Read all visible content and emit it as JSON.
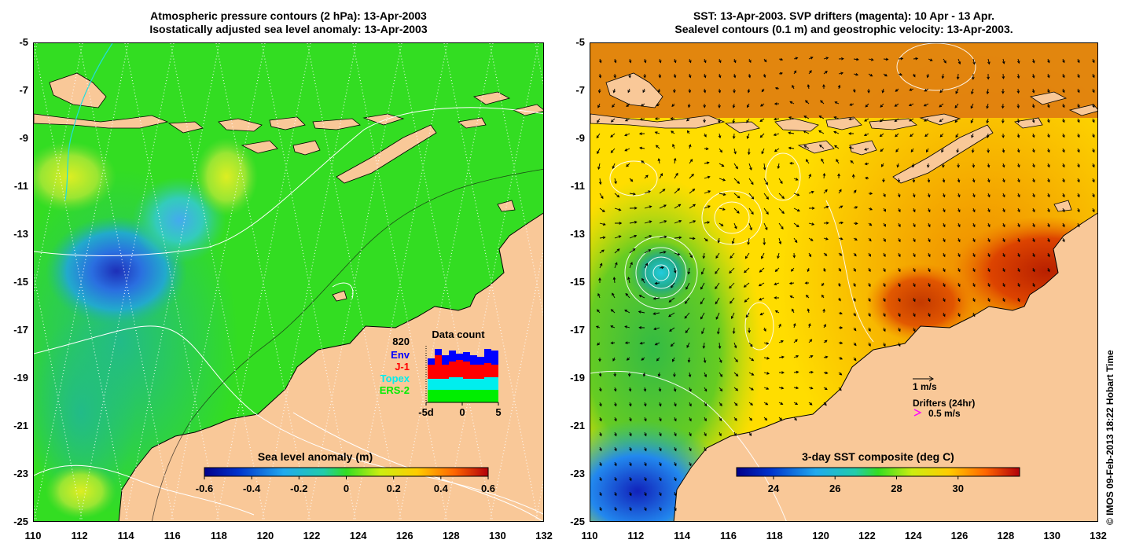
{
  "left_panel": {
    "title_line1": "Atmospheric pressure contours (2 hPa): 13-Apr-2003",
    "title_line2": "Isostatically adjusted sea level anomaly: 13-Apr-2003",
    "colorbar_title": "Sea level anomaly (m)",
    "colorbar_ticks": [
      "-0.6",
      "-0.4",
      "-0.2",
      "0",
      "0.2",
      "0.4",
      "0.6"
    ],
    "colorbar_range": [
      -0.6,
      0.6
    ],
    "colors": {
      "land": "#f9c898",
      "ocean": "#33dd22"
    },
    "data_count": {
      "title": "Data count",
      "total": "820",
      "legend": [
        {
          "label": "Env",
          "color": "#0000ff"
        },
        {
          "label": "J-1",
          "color": "#ff0000"
        },
        {
          "label": "Topex",
          "color": "#00eeee"
        },
        {
          "label": "ERS-2",
          "color": "#00ee00"
        }
      ],
      "x_labels": [
        "-5d",
        "0",
        "5"
      ]
    }
  },
  "right_panel": {
    "title_line1": "SST: 13-Apr-2003. SVP drifters (magenta): 10 Apr - 13 Apr.",
    "title_line2": "Sealevel contours (0.1 m) and geostrophic velocity: 13-Apr-2003.",
    "colorbar_title": "3-day SST composite (deg C)",
    "colorbar_ticks": [
      "24",
      "26",
      "28",
      "30"
    ],
    "colorbar_range": [
      22.8,
      32.0
    ],
    "velocity_scale_label": "1 m/s",
    "drifters_label": "Drifters (24hr)",
    "drifters_speed_label": "0.5 m/s",
    "drifter_arrow_color": "#ff00ff"
  },
  "axes": {
    "x_ticks": [
      "110",
      "112",
      "114",
      "116",
      "118",
      "120",
      "122",
      "124",
      "126",
      "128",
      "130",
      "132"
    ],
    "y_ticks": [
      "-5",
      "-7",
      "-9",
      "-11",
      "-13",
      "-15",
      "-17",
      "-19",
      "-21",
      "-23",
      "-25"
    ],
    "lon_range": [
      110,
      132
    ],
    "lat_range": [
      -5,
      -25
    ]
  },
  "credit": "© IMOS 09-Feb-2013 18:22 Hobart Time"
}
